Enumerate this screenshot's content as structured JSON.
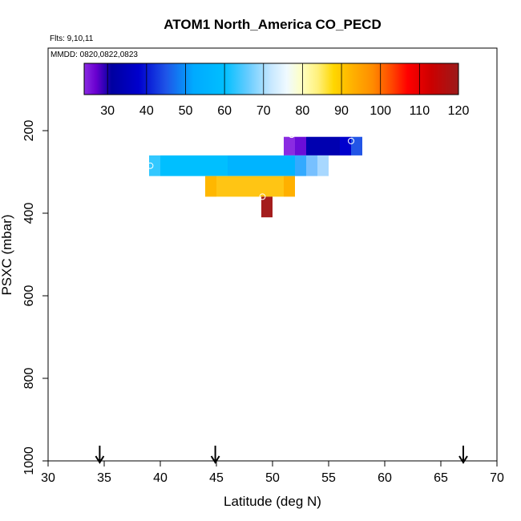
{
  "chart_data": {
    "type": "heatmap",
    "title": "ATOM1 North_America CO_PECD",
    "flights_label": "Flts: 9,10,11",
    "dates_label": "MMDD: 0820,0822,0823",
    "xlabel": "Latitude (deg N)",
    "ylabel": "PSXC (mbar)",
    "xlim": [
      30,
      70
    ],
    "ylim": [
      1000,
      0
    ],
    "xticks": [
      30,
      35,
      40,
      45,
      50,
      55,
      60,
      65,
      70
    ],
    "yticks": [
      200,
      400,
      600,
      800,
      1000
    ],
    "colorbar": {
      "range": [
        24,
        120
      ],
      "ticks": [
        30,
        40,
        50,
        60,
        70,
        80,
        90,
        100,
        110,
        120
      ],
      "stops": [
        {
          "v": 24,
          "c": "#8a2be2"
        },
        {
          "v": 27,
          "c": "#6a00d0"
        },
        {
          "v": 31,
          "c": "#0000a0"
        },
        {
          "v": 38,
          "c": "#0000cd"
        },
        {
          "v": 45,
          "c": "#1e55e8"
        },
        {
          "v": 52,
          "c": "#00aaff"
        },
        {
          "v": 60,
          "c": "#00bfff"
        },
        {
          "v": 66,
          "c": "#66ccff"
        },
        {
          "v": 72,
          "c": "#c8e8ff"
        },
        {
          "v": 76,
          "c": "#f0faff"
        },
        {
          "v": 80,
          "c": "#ffffc0"
        },
        {
          "v": 84,
          "c": "#fff07a"
        },
        {
          "v": 88,
          "c": "#ffd700"
        },
        {
          "v": 93,
          "c": "#ffb000"
        },
        {
          "v": 98,
          "c": "#ff8c00"
        },
        {
          "v": 103,
          "c": "#ff4500"
        },
        {
          "v": 107,
          "c": "#ff0000"
        },
        {
          "v": 113,
          "c": "#cc0000"
        },
        {
          "v": 120,
          "c": "#9b1b1b"
        }
      ]
    },
    "cells": [
      {
        "lat": 51,
        "lat2": 52,
        "p": 215,
        "p2": 260,
        "color": "#8a2be2"
      },
      {
        "lat": 52,
        "lat2": 53,
        "p": 215,
        "p2": 260,
        "color": "#6a0dd8"
      },
      {
        "lat": 53,
        "lat2": 56,
        "p": 215,
        "p2": 260,
        "color": "#0000b0"
      },
      {
        "lat": 56,
        "lat2": 57,
        "p": 215,
        "p2": 260,
        "color": "#0000cd"
      },
      {
        "lat": 57,
        "lat2": 58,
        "p": 215,
        "p2": 260,
        "color": "#2255e6"
      },
      {
        "lat": 39,
        "lat2": 40,
        "p": 260,
        "p2": 310,
        "color": "#33c8ff"
      },
      {
        "lat": 40,
        "lat2": 46,
        "p": 260,
        "p2": 310,
        "color": "#00bfff"
      },
      {
        "lat": 46,
        "lat2": 52,
        "p": 260,
        "p2": 310,
        "color": "#00b4ff"
      },
      {
        "lat": 52,
        "lat2": 53,
        "p": 260,
        "p2": 310,
        "color": "#33aaff"
      },
      {
        "lat": 53,
        "lat2": 54,
        "p": 260,
        "p2": 310,
        "color": "#77c0ff"
      },
      {
        "lat": 54,
        "lat2": 55,
        "p": 260,
        "p2": 310,
        "color": "#a8d8ff"
      },
      {
        "lat": 44,
        "lat2": 45,
        "p": 310,
        "p2": 360,
        "color": "#ffb700"
      },
      {
        "lat": 45,
        "lat2": 51,
        "p": 310,
        "p2": 360,
        "color": "#ffc514"
      },
      {
        "lat": 51,
        "lat2": 52,
        "p": 310,
        "p2": 360,
        "color": "#ffb000"
      },
      {
        "lat": 49,
        "lat2": 50,
        "p": 360,
        "p2": 410,
        "color": "#a41d1d"
      }
    ],
    "points": [
      {
        "lat": 51.7,
        "p": 210
      },
      {
        "lat": 57.0,
        "p": 225
      },
      {
        "lat": 39.1,
        "p": 285
      },
      {
        "lat": 49.1,
        "p": 360
      }
    ],
    "arrows_lat": [
      34.6,
      44.9,
      67.0
    ]
  }
}
